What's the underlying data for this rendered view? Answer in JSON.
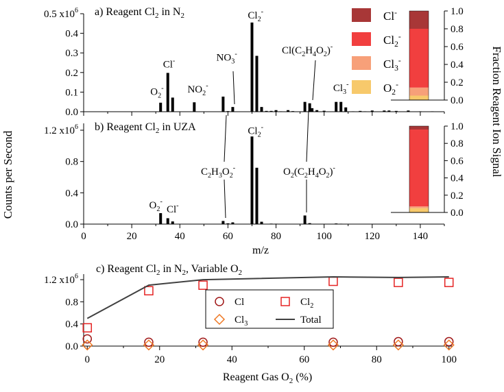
{
  "figure": {
    "y_axis_label": "Counts per Second",
    "right_axis_label": "Fraction Reagent Ion Signal",
    "scale_base": "x10",
    "scale_exp": "6"
  },
  "chart_data": [
    {
      "id": "a",
      "type": "bar",
      "title_pre": "a) Reagent Cl",
      "title_sub": "2",
      "title_post": " in N",
      "title_sub2": "2",
      "xlim": [
        0,
        150
      ],
      "ylim": [
        0,
        0.5
      ],
      "yticks": [
        {
          "v": 0.0,
          "t": "0.0"
        },
        {
          "v": 0.1,
          "t": "0.1"
        },
        {
          "v": 0.2,
          "t": "0.2"
        },
        {
          "v": 0.3,
          "t": "0.3"
        },
        {
          "v": 0.4,
          "t": "0.4"
        },
        {
          "v": 0.5,
          "t": "0.5"
        }
      ],
      "ytick_top_has_scale": true,
      "mz": [
        32,
        35,
        37,
        46,
        58,
        60,
        62,
        70,
        72,
        74,
        76,
        78,
        80,
        82,
        85,
        87,
        92,
        94,
        95,
        97,
        100,
        105,
        107,
        109,
        112,
        115,
        117,
        120,
        125,
        127,
        130,
        135,
        140,
        145
      ],
      "counts": [
        0.046,
        0.198,
        0.072,
        0.048,
        0.077,
        0.003,
        0.024,
        0.455,
        0.285,
        0.024,
        0.004,
        0.004,
        0.008,
        0.002,
        0.008,
        0.003,
        0.05,
        0.043,
        0.018,
        0.008,
        0.005,
        0.05,
        0.05,
        0.022,
        0.002,
        0.004,
        0.002,
        0.006,
        0.006,
        0.006,
        0.004,
        0.006,
        0.002,
        0.002
      ],
      "annotations": [
        {
          "name": "O2-",
          "base": "O",
          "sub": "2",
          "sup": "-",
          "x": 30.5,
          "y": 0.085
        },
        {
          "name": "Cl-",
          "base": "Cl",
          "sub": "",
          "sup": "-",
          "x": 35.5,
          "y": 0.225
        },
        {
          "name": "NO2-",
          "base": "NO",
          "sub": "2",
          "sup": "-",
          "x": 47.5,
          "y": 0.098
        },
        {
          "name": "NO3-",
          "base": "NO",
          "sub": "3",
          "sup": "-",
          "x": 59.5,
          "y": 0.26
        },
        {
          "name": "Cl2-",
          "base": "Cl",
          "sub": "2",
          "sup": "-",
          "x": 71.5,
          "y": 0.475
        },
        {
          "name": "Cl3-",
          "base": "Cl",
          "sub": "3",
          "sup": "-",
          "x": 107,
          "y": 0.105
        }
      ],
      "formula_label": "Cl(C2H4O2)-",
      "inset": {
        "ylim": [
          0,
          1
        ],
        "ticks": [
          "0.0",
          "0.2",
          "0.4",
          "0.6",
          "0.8",
          "1.0"
        ],
        "stack": [
          {
            "name": "O2-",
            "value": 0.05,
            "color": "#f7c96b"
          },
          {
            "name": "Cl3-",
            "value": 0.09,
            "color": "#f7a079"
          },
          {
            "name": "Cl2-",
            "value": 0.66,
            "color": "#f13f3f"
          },
          {
            "name": "Cl-",
            "value": 0.2,
            "color": "#a83737"
          }
        ],
        "legend": [
          {
            "name": "Cl-",
            "base": "Cl",
            "sub": "",
            "sup": "-",
            "color": "#a83737"
          },
          {
            "name": "Cl2-",
            "base": "Cl",
            "sub": "2",
            "sup": "-",
            "color": "#f13f3f"
          },
          {
            "name": "Cl3-",
            "base": "Cl",
            "sub": "3",
            "sup": "-",
            "color": "#f7a079"
          },
          {
            "name": "O2-",
            "base": "O",
            "sub": "2",
            "sup": "-",
            "color": "#f7c96b"
          }
        ]
      }
    },
    {
      "id": "b",
      "type": "bar",
      "title_pre": "b) Reagent Cl",
      "title_sub": "2",
      "title_post": " in UZA",
      "title_sub2": "",
      "xlabel": "m/z",
      "xlim": [
        0,
        150
      ],
      "xticks": [
        "0",
        "20",
        "40",
        "60",
        "80",
        "100",
        "120",
        "140"
      ],
      "ylim": [
        0,
        1.2
      ],
      "yticks": [
        {
          "v": 0.0,
          "t": "0.0"
        },
        {
          "v": 0.4,
          "t": "0.4"
        },
        {
          "v": 0.8,
          "t": "0.8"
        },
        {
          "v": 1.2,
          "t": "1.2"
        }
      ],
      "ytick_top_has_scale": true,
      "mz": [
        32,
        35,
        37,
        58,
        60,
        62,
        70,
        72,
        74,
        76,
        78,
        80,
        82,
        85,
        92,
        94,
        97,
        105,
        107,
        109,
        115,
        120,
        125,
        127,
        130,
        135,
        140,
        145
      ],
      "counts": [
        0.14,
        0.075,
        0.034,
        0.04,
        0.01,
        0.022,
        1.12,
        0.72,
        0.03,
        0.004,
        0.006,
        0.005,
        0.002,
        0.002,
        0.11,
        0.012,
        0.003,
        0.008,
        0.005,
        0.003,
        0.002,
        0.003,
        0.004,
        0.003,
        0.002,
        0.003,
        0.002,
        0.002
      ],
      "annotations": [
        {
          "name": "O2-",
          "base": "O",
          "sub": "2",
          "sup": "-",
          "x": 30,
          "y": 0.2
        },
        {
          "name": "Cl-",
          "base": "Cl",
          "sub": "",
          "sup": "-",
          "x": 37,
          "y": 0.15
        },
        {
          "name": "Cl2-",
          "base": "Cl",
          "sub": "2",
          "sup": "-",
          "x": 71.5,
          "y": 1.15
        }
      ],
      "formula_label_c2h3o2": "C2H3O2-",
      "formula_label_o2c2h4o2": "O2(C2H4O2)-",
      "inset": {
        "ylim": [
          0,
          1
        ],
        "ticks": [
          "0.0",
          "0.2",
          "0.4",
          "0.6",
          "0.8",
          "1.0"
        ],
        "stack": [
          {
            "name": "O2-",
            "value": 0.05,
            "color": "#f7c96b"
          },
          {
            "name": "Cl3-",
            "value": 0.02,
            "color": "#f7a079"
          },
          {
            "name": "Cl2-",
            "value": 0.89,
            "color": "#f13f3f"
          },
          {
            "name": "Cl-",
            "value": 0.04,
            "color": "#a83737"
          }
        ]
      }
    },
    {
      "id": "c",
      "type": "scatter",
      "title_pre": "c) Reagent Cl",
      "title_sub": "2",
      "title_post": " in N",
      "title_sub2": "2",
      "title_tail": ", Variable O",
      "title_sub3": "2",
      "xlabel": "Reagent Gas O",
      "xlabel_sub": "2",
      "xlabel_tail": " (%)",
      "xlim": [
        -1,
        101
      ],
      "xticks": [
        "0",
        "20",
        "40",
        "60",
        "80",
        "100"
      ],
      "ylim": [
        0,
        1.3
      ],
      "yticks": [
        {
          "v": 0.0,
          "t": "0.0"
        },
        {
          "v": 0.4,
          "t": "0.4"
        },
        {
          "v": 0.8,
          "t": "0.8"
        },
        {
          "v": 1.2,
          "t": "1.2"
        }
      ],
      "ytick_top_has_scale": true,
      "x": [
        0,
        17,
        32,
        68,
        86,
        100
      ],
      "series": [
        {
          "name": "Cl",
          "marker": "circle",
          "color": "#a01818",
          "values": [
            0.13,
            0.07,
            0.07,
            0.07,
            0.08,
            0.08
          ]
        },
        {
          "name": "Cl2",
          "marker": "square",
          "color": "#e52222",
          "values": [
            0.33,
            1.0,
            1.1,
            1.17,
            1.15,
            1.15
          ]
        },
        {
          "name": "Cl3",
          "marker": "diamond",
          "color": "#ee7722",
          "values": [
            0.02,
            0.02,
            0.02,
            0.02,
            0.02,
            0.02
          ]
        },
        {
          "name": "Total",
          "marker": "line",
          "color": "#404040",
          "values": [
            0.5,
            1.1,
            1.2,
            1.25,
            1.24,
            1.25
          ]
        }
      ],
      "legend": [
        {
          "name": "Cl",
          "base": "Cl",
          "sub": ""
        },
        {
          "name": "Cl2",
          "base": "Cl",
          "sub": "2"
        },
        {
          "name": "Cl3",
          "base": "Cl",
          "sub": "3"
        },
        {
          "name": "Total",
          "base": "Total",
          "sub": ""
        }
      ]
    }
  ]
}
